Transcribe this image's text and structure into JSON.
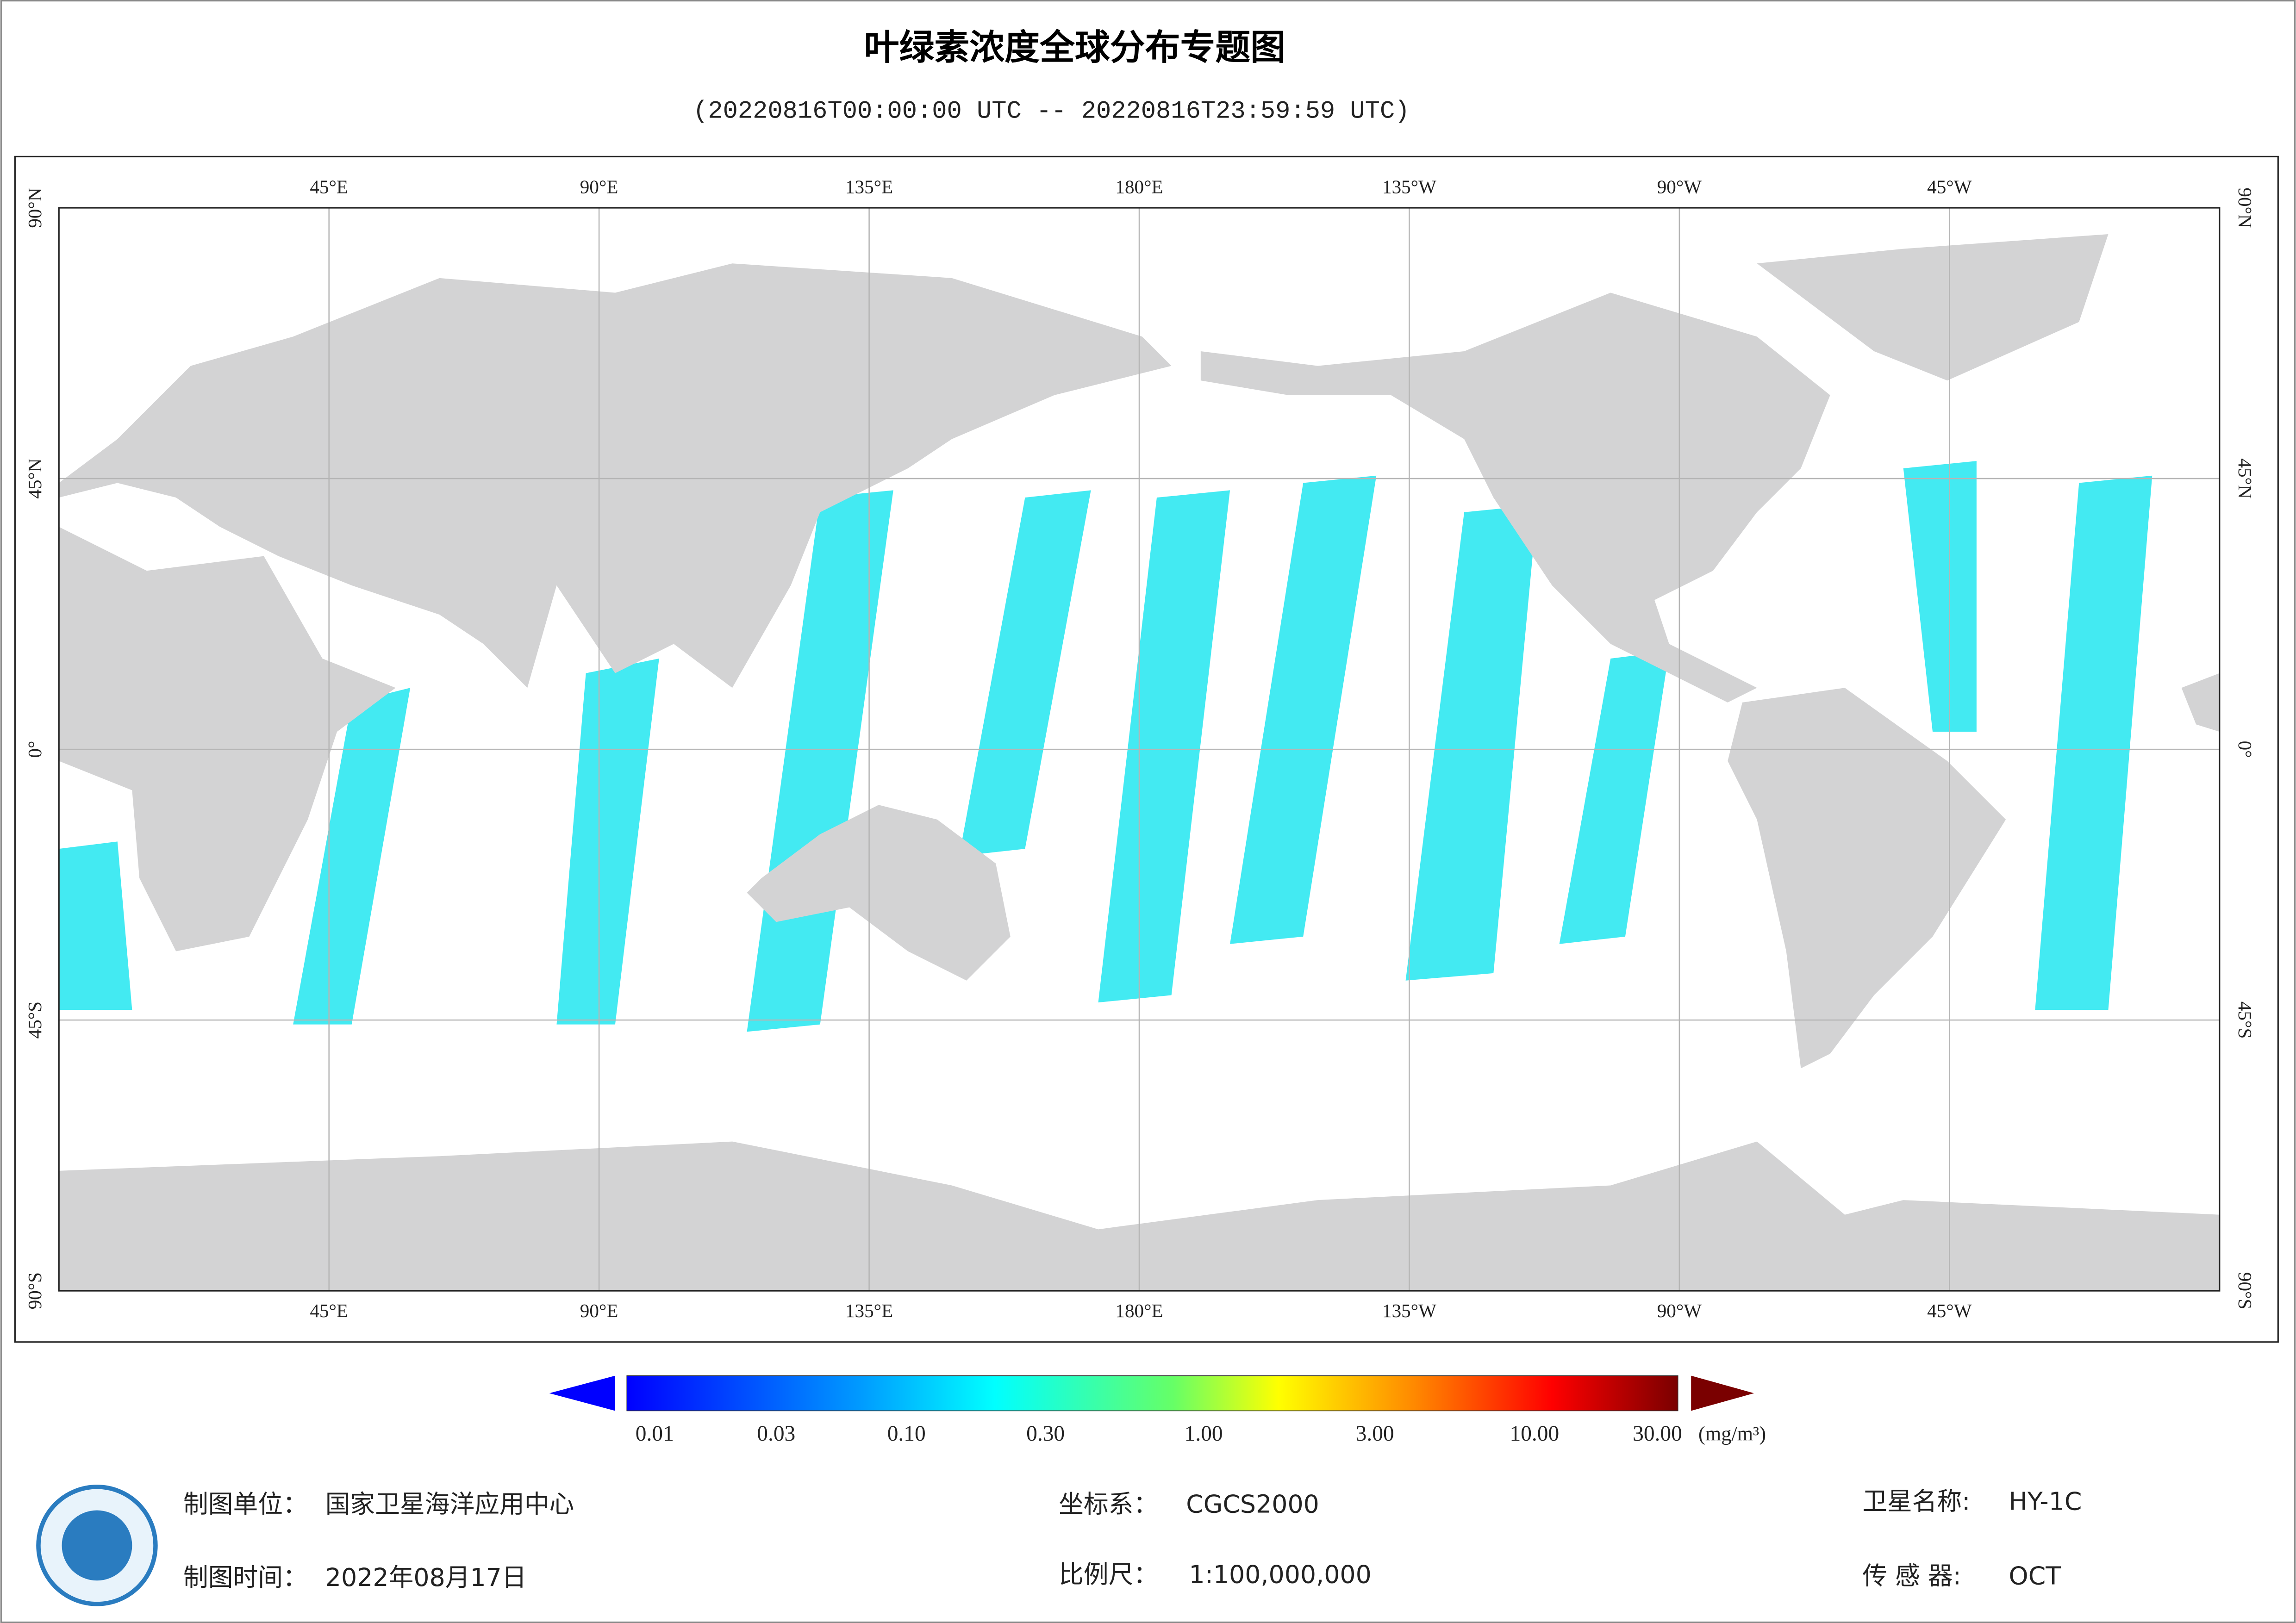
{
  "header": {
    "title": "叶绿素浓度全球分布专题图",
    "subtitle": "(20220816T00:00:00 UTC -- 20220816T23:59:59 UTC)"
  },
  "map": {
    "top_labels": [
      "45°E",
      "90°E",
      "135°E",
      "180°E",
      "135°W",
      "90°W",
      "45°W"
    ],
    "bottom_labels": [
      "45°E",
      "90°E",
      "135°E",
      "180°E",
      "135°W",
      "90°W",
      "45°W"
    ],
    "left_labels": [
      "90°N",
      "45°N",
      "0°",
      "45°S",
      "90°S"
    ],
    "right_labels": [
      "90°N",
      "45°N",
      "0°",
      "45°S",
      "90°S"
    ]
  },
  "colorbar": {
    "ticks": [
      "0.01",
      "0.03",
      "0.10",
      "0.30",
      "1.00",
      "3.00",
      "10.00",
      "30.00"
    ],
    "unit": "(mg/m³)"
  },
  "footer": {
    "unit_label": "制图单位：",
    "unit": "国家卫星海洋应用中心",
    "date_label": "制图时间：",
    "date": "2022年08月17日",
    "crs_label": "坐标系：",
    "crs": "CGCS2000",
    "scale_label": "比例尺：",
    "scale": "1:100,000,000",
    "satellite_label": "卫星名称:",
    "satellite": "HY-1C",
    "sensor_label": "传 感 器:",
    "sensor": "OCT"
  }
}
